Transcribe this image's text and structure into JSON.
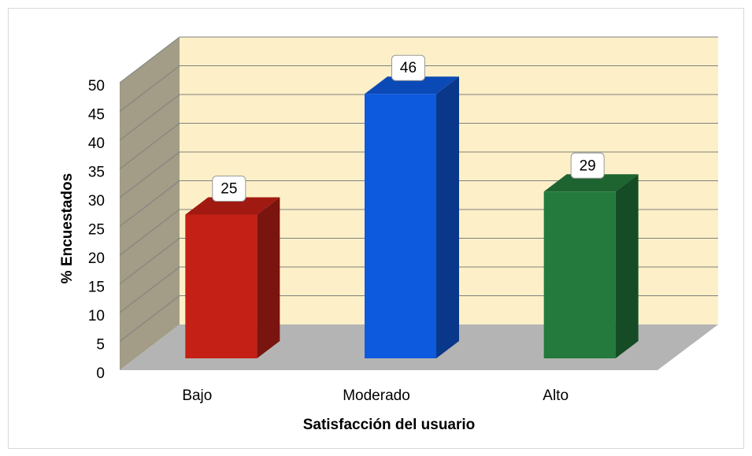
{
  "chart_data": {
    "type": "bar",
    "categories": [
      "Bajo",
      "Moderado",
      "Alto"
    ],
    "values": [
      25,
      46,
      29
    ],
    "colors": [
      "#c42016",
      "#0e5ade",
      "#237a3c"
    ],
    "xlabel": "Satisfacción del usuario",
    "ylabel": "% Encuestados",
    "ylim": [
      0,
      50
    ],
    "yticks": [
      0,
      5,
      10,
      15,
      20,
      25,
      30,
      35,
      40,
      45,
      50
    ],
    "grid": true
  }
}
